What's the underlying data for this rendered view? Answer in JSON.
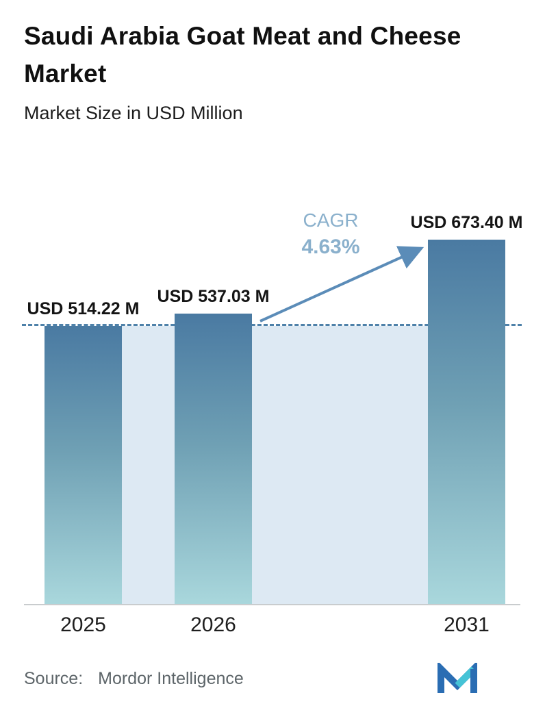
{
  "header": {
    "title": "Saudi Arabia Goat Meat and Cheese Market",
    "subtitle": "Market Size in USD Million"
  },
  "chart_data": {
    "type": "bar",
    "categories": [
      "2025",
      "2026",
      "2031"
    ],
    "values": [
      514.22,
      537.03,
      673.4
    ],
    "value_labels": [
      "USD 514.22 M",
      "USD 537.03 M",
      "USD 673.40 M"
    ],
    "title": "Saudi Arabia Goat Meat and Cheese Market",
    "subtitle": "Market Size in USD Million",
    "xlabel": "",
    "ylabel": "Market Size in USD Million",
    "ylim": [
      0,
      700
    ],
    "gridlines": "off",
    "legend": "none",
    "cagr": {
      "label": "CAGR",
      "value": "4.63%"
    },
    "baseline_value": 514.22,
    "annotations": [
      "dashed reference line at 2025 value",
      "growth arrow from 2026 bar to 2031 bar"
    ],
    "colors": {
      "bar_gradient_top": "#4a7aa2",
      "bar_gradient_bottom": "#a9d7dc",
      "reference_band": "#dde9f3",
      "dashed_line": "#4e81a9",
      "arrow": "#5b8cb8",
      "cagr_text": "#8ab0cc"
    }
  },
  "footer": {
    "source_label": "Source:",
    "source_value": "Mordor Intelligence",
    "logo": "mordor-intelligence-logo"
  }
}
